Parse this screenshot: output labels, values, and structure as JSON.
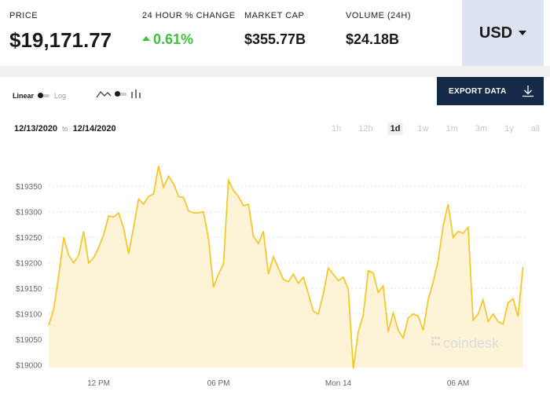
{
  "stats": {
    "price": {
      "label": "PRICE",
      "value": "$19,171.77"
    },
    "change": {
      "label": "24 HOUR % CHANGE",
      "value": "0.61%"
    },
    "market_cap": {
      "label": "MARKET CAP",
      "value": "$355.77B"
    },
    "volume": {
      "label": "VOLUME (24H)",
      "value": "$24.18B"
    }
  },
  "currency": {
    "label": "USD"
  },
  "toolbar": {
    "linear_label": "Linear",
    "log_label": "Log",
    "export_label": "EXPORT DATA"
  },
  "range": {
    "from": "12/13/2020",
    "to_label": "to",
    "to": "12/14/2020"
  },
  "periods": [
    {
      "label": "1h",
      "active": false
    },
    {
      "label": "12h",
      "active": false
    },
    {
      "label": "1d",
      "active": true
    },
    {
      "label": "1w",
      "active": false
    },
    {
      "label": "1m",
      "active": false
    },
    {
      "label": "3m",
      "active": false
    },
    {
      "label": "1y",
      "active": false
    },
    {
      "label": "all",
      "active": false
    }
  ],
  "watermark": "coindesk",
  "colors": {
    "line": "#f7c31d",
    "fill": "#fdf3d6",
    "accent_green": "#3cc23c",
    "button_bg": "#152a49"
  },
  "chart_data": {
    "type": "area",
    "title": "",
    "xlabel": "",
    "ylabel": "",
    "x_range": [
      0,
      24
    ],
    "ylim": [
      18995,
      19395
    ],
    "y_ticks": [
      19000,
      19050,
      19100,
      19150,
      19200,
      19250,
      19300,
      19350
    ],
    "y_tick_labels": [
      "$19000",
      "$19050",
      "$19100",
      "$19150",
      "$19200",
      "$19250",
      "$19300",
      "$19350"
    ],
    "x_ticks": [
      {
        "x": 2.5,
        "label": "12 PM"
      },
      {
        "x": 8.5,
        "label": "06 PM"
      },
      {
        "x": 14.5,
        "label": "Mon 14"
      },
      {
        "x": 20.5,
        "label": "06 AM"
      }
    ],
    "grid": true,
    "series": [
      {
        "values": [
          [
            0.0,
            19078
          ],
          [
            0.25,
            19110
          ],
          [
            0.5,
            19175
          ],
          [
            0.75,
            19250
          ],
          [
            1.0,
            19215
          ],
          [
            1.25,
            19200
          ],
          [
            1.5,
            19215
          ],
          [
            1.75,
            19262
          ],
          [
            2.0,
            19200
          ],
          [
            2.25,
            19210
          ],
          [
            2.5,
            19230
          ],
          [
            2.75,
            19255
          ],
          [
            3.0,
            19292
          ],
          [
            3.25,
            19290
          ],
          [
            3.5,
            19298
          ],
          [
            3.75,
            19268
          ],
          [
            4.0,
            19218
          ],
          [
            4.25,
            19270
          ],
          [
            4.5,
            19325
          ],
          [
            4.75,
            19315
          ],
          [
            5.0,
            19330
          ],
          [
            5.25,
            19335
          ],
          [
            5.5,
            19390
          ],
          [
            5.75,
            19348
          ],
          [
            6.0,
            19370
          ],
          [
            6.25,
            19355
          ],
          [
            6.5,
            19330
          ],
          [
            6.75,
            19328
          ],
          [
            7.0,
            19302
          ],
          [
            7.25,
            19298
          ],
          [
            7.5,
            19298
          ],
          [
            7.75,
            19300
          ],
          [
            8.0,
            19248
          ],
          [
            8.25,
            19152
          ],
          [
            8.5,
            19178
          ],
          [
            8.75,
            19198
          ],
          [
            9.0,
            19362
          ],
          [
            9.25,
            19342
          ],
          [
            9.5,
            19330
          ],
          [
            9.75,
            19312
          ],
          [
            10.0,
            19315
          ],
          [
            10.25,
            19252
          ],
          [
            10.5,
            19238
          ],
          [
            10.75,
            19262
          ],
          [
            11.0,
            19178
          ],
          [
            11.25,
            19212
          ],
          [
            11.5,
            19190
          ],
          [
            11.75,
            19168
          ],
          [
            12.0,
            19163
          ],
          [
            12.25,
            19178
          ],
          [
            12.5,
            19160
          ],
          [
            12.75,
            19172
          ],
          [
            13.0,
            19140
          ],
          [
            13.25,
            19105
          ],
          [
            13.5,
            19100
          ],
          [
            13.75,
            19140
          ],
          [
            14.0,
            19190
          ],
          [
            14.25,
            19178
          ],
          [
            14.5,
            19165
          ],
          [
            14.75,
            19172
          ],
          [
            15.0,
            19148
          ],
          [
            15.25,
            18993
          ],
          [
            15.5,
            19065
          ],
          [
            15.75,
            19098
          ],
          [
            16.0,
            19185
          ],
          [
            16.25,
            19180
          ],
          [
            16.5,
            19142
          ],
          [
            16.75,
            19155
          ],
          [
            17.0,
            19065
          ],
          [
            17.25,
            19102
          ],
          [
            17.5,
            19068
          ],
          [
            17.75,
            19053
          ],
          [
            18.0,
            19092
          ],
          [
            18.25,
            19100
          ],
          [
            18.5,
            19096
          ],
          [
            18.75,
            19068
          ],
          [
            19.0,
            19128
          ],
          [
            19.25,
            19162
          ],
          [
            19.5,
            19205
          ],
          [
            19.75,
            19272
          ],
          [
            20.0,
            19315
          ],
          [
            20.25,
            19250
          ],
          [
            20.5,
            19262
          ],
          [
            20.75,
            19258
          ],
          [
            21.0,
            19270
          ],
          [
            21.25,
            19088
          ],
          [
            21.5,
            19100
          ],
          [
            21.75,
            19128
          ],
          [
            22.0,
            19085
          ],
          [
            22.25,
            19100
          ],
          [
            22.5,
            19085
          ],
          [
            22.75,
            19080
          ],
          [
            23.0,
            19122
          ],
          [
            23.25,
            19130
          ],
          [
            23.5,
            19095
          ],
          [
            23.75,
            19192
          ]
        ]
      }
    ]
  }
}
